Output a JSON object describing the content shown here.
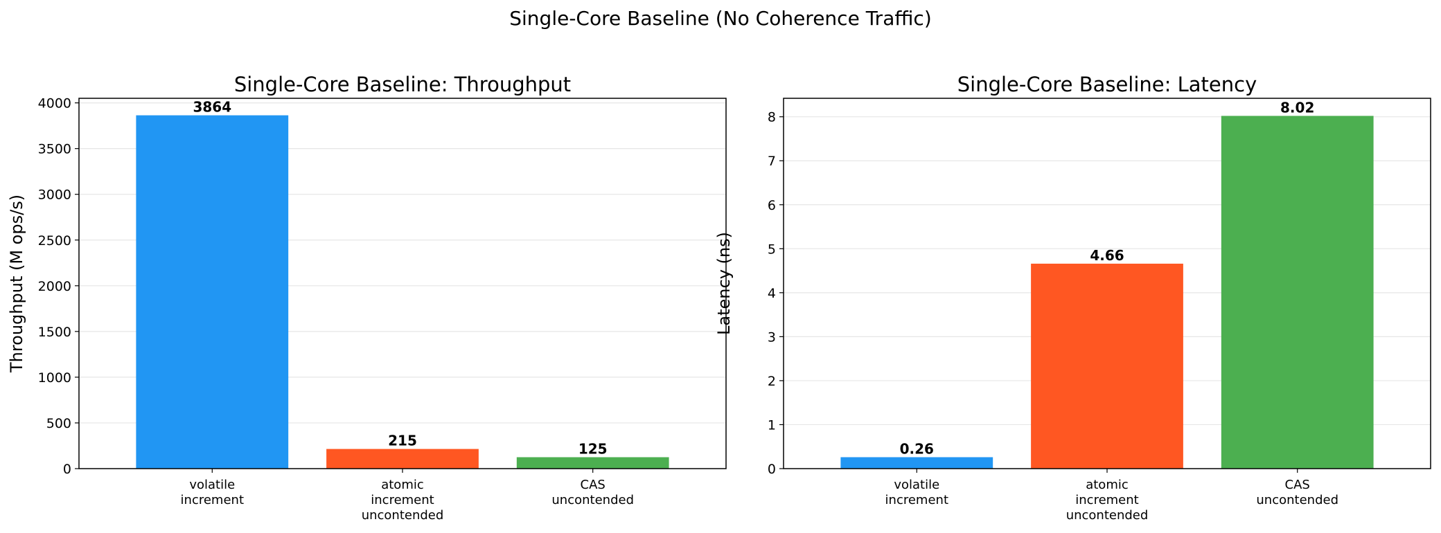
{
  "suptitle": "Single-Core Baseline (No Coherence Traffic)",
  "chart_data": [
    {
      "type": "bar",
      "title": "Single-Core Baseline: Throughput",
      "ylabel": "Throughput (M ops/s)",
      "xlabel": "",
      "categories": [
        [
          "volatile",
          "increment"
        ],
        [
          "atomic",
          "increment",
          "uncontended"
        ],
        [
          "CAS",
          "uncontended"
        ]
      ],
      "values": [
        3864,
        215,
        125
      ],
      "value_labels": [
        "3864",
        "215",
        "125"
      ],
      "colors": [
        "#2196F3",
        "#FF5722",
        "#4CAF50"
      ],
      "ylim": [
        0,
        4050
      ],
      "yticks": [
        0,
        500,
        1000,
        1500,
        2000,
        2500,
        3000,
        3500,
        4000
      ],
      "grid": "y"
    },
    {
      "type": "bar",
      "title": "Single-Core Baseline: Latency",
      "ylabel": "Latency (ns)",
      "xlabel": "",
      "categories": [
        [
          "volatile",
          "increment"
        ],
        [
          "atomic",
          "increment",
          "uncontended"
        ],
        [
          "CAS",
          "uncontended"
        ]
      ],
      "values": [
        0.26,
        4.66,
        8.02
      ],
      "value_labels": [
        "0.26",
        "4.66",
        "8.02"
      ],
      "colors": [
        "#2196F3",
        "#FF5722",
        "#4CAF50"
      ],
      "ylim": [
        0,
        8.42
      ],
      "yticks": [
        0,
        1,
        2,
        3,
        4,
        5,
        6,
        7,
        8
      ],
      "grid": "y"
    }
  ]
}
